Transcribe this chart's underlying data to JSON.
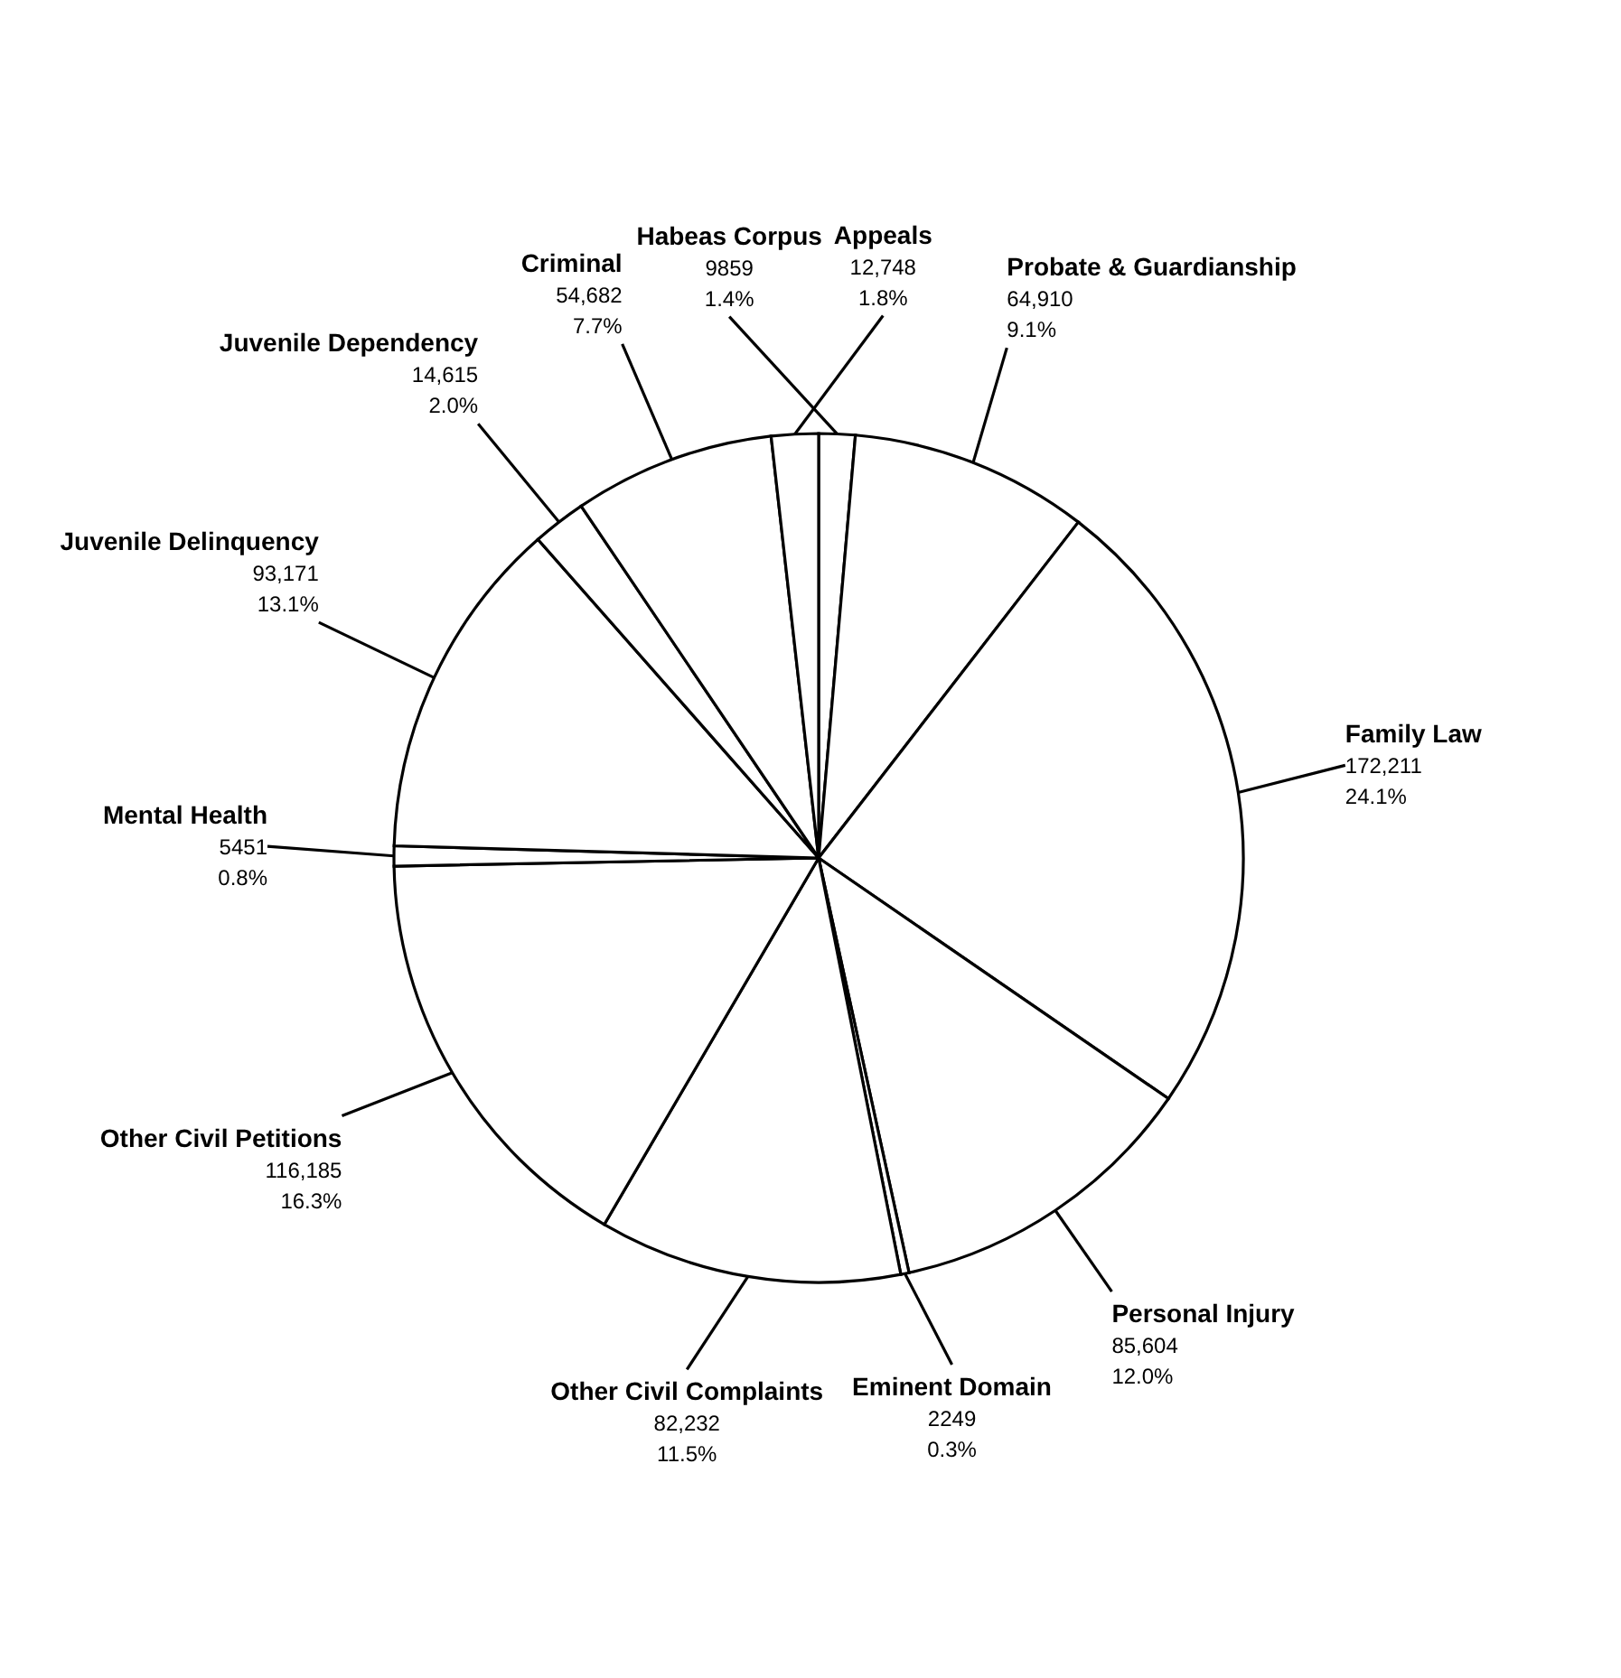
{
  "chart_data": {
    "type": "pie",
    "categories": [
      "Habeas Corpus",
      "Probate & Guardianship",
      "Family Law",
      "Personal Injury",
      "Eminent Domain",
      "Other Civil Complaints",
      "Other Civil Petitions",
      "Mental Health",
      "Juvenile Delinquency",
      "Juvenile Dependency",
      "Criminal",
      "Appeals"
    ],
    "values": [
      9859,
      64910,
      172211,
      85604,
      2249,
      82232,
      116185,
      5451,
      93171,
      14615,
      54682,
      12748
    ],
    "value_labels": [
      "9859\n1.4%",
      "64,910\n9.1%",
      "172,211\n24.1%",
      "85,604\n12.0%",
      "2249\n0.3%",
      "82,232\n11.5%",
      "116,185\n16.3%",
      "5451\n0.8%",
      "93,171\n13.1%",
      "14,615\n2.0%",
      "54,682\n7.7%",
      "12,748\n1.8%"
    ],
    "colors": [
      "#ffffff",
      "#ffffff",
      "#ffffff",
      "#ffffff",
      "#ffffff",
      "#ffffff",
      "#ffffff",
      "#ffffff",
      "#ffffff",
      "#ffffff",
      "#ffffff",
      "#ffffff"
    ],
    "legend": false
  }
}
